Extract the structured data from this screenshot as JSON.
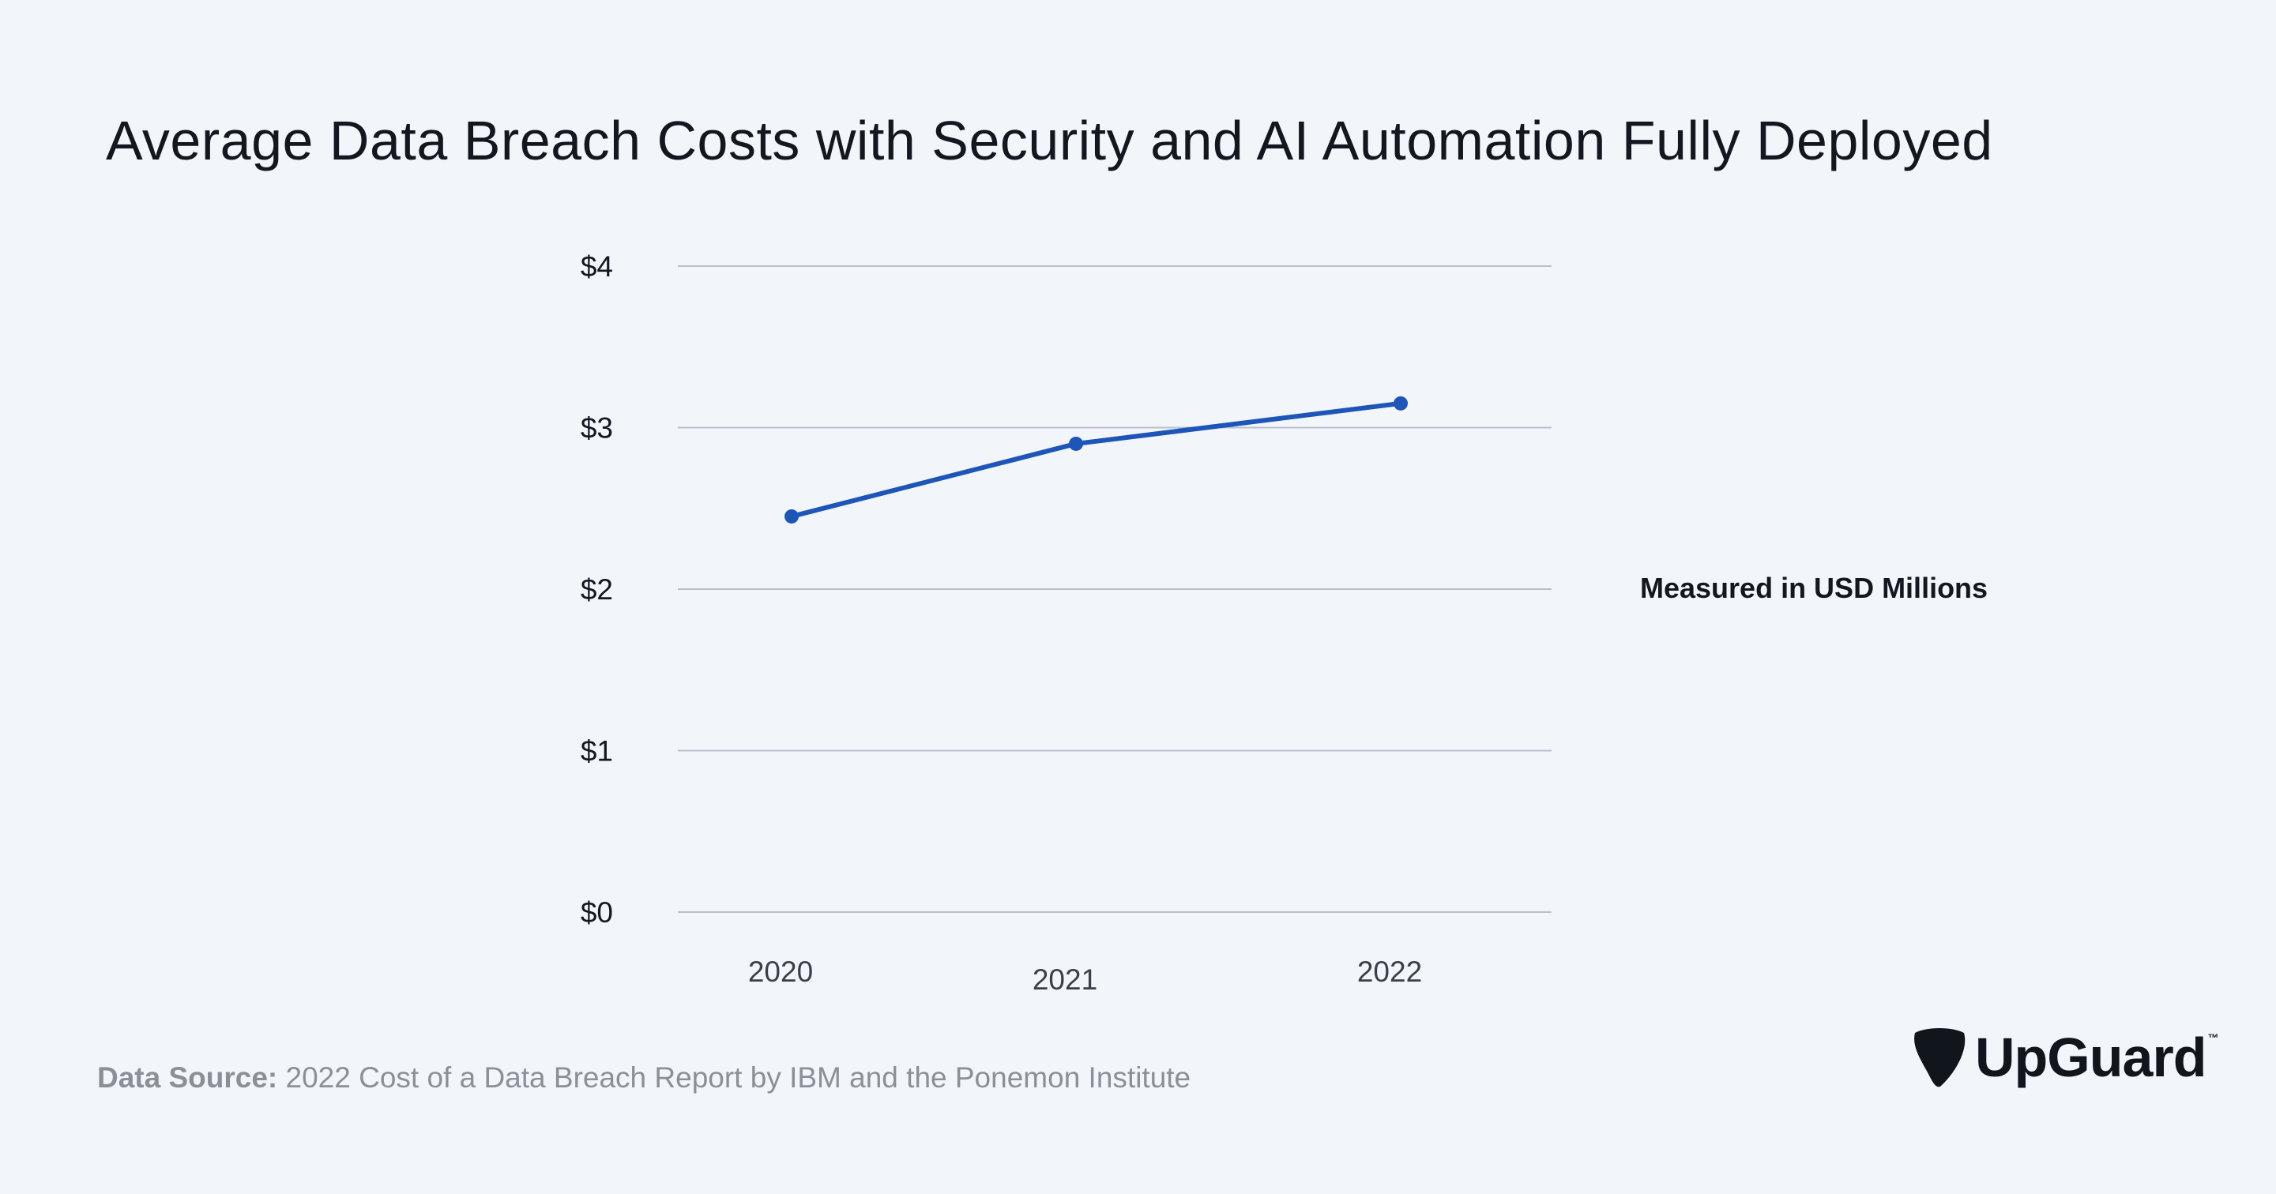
{
  "chart_data": {
    "type": "line",
    "title": "Average Data Breach Costs with Security and AI Automation Fully Deployed",
    "x": [
      "2020",
      "2021",
      "2022"
    ],
    "series": [
      {
        "values": [
          2.45,
          2.9,
          3.15
        ],
        "color": "#1d55b8"
      }
    ],
    "y_ticks": [
      "$0",
      "$1",
      "$2",
      "$3",
      "$4"
    ],
    "ylim": [
      0,
      4
    ],
    "grid": true,
    "legend": "none",
    "annotation": "Measured in USD Millions"
  },
  "source": {
    "label": "Data Source:",
    "text": " 2022 Cost of a Data Breach Report by IBM and the Ponemon Institute"
  },
  "logo": {
    "name": "UpGuard",
    "tm": "™"
  },
  "colors": {
    "background": "#f2f6fb",
    "gridline": "#b9bfcc",
    "line": "#1d55b8",
    "text": "#14171f",
    "muted": "#8c9096"
  }
}
